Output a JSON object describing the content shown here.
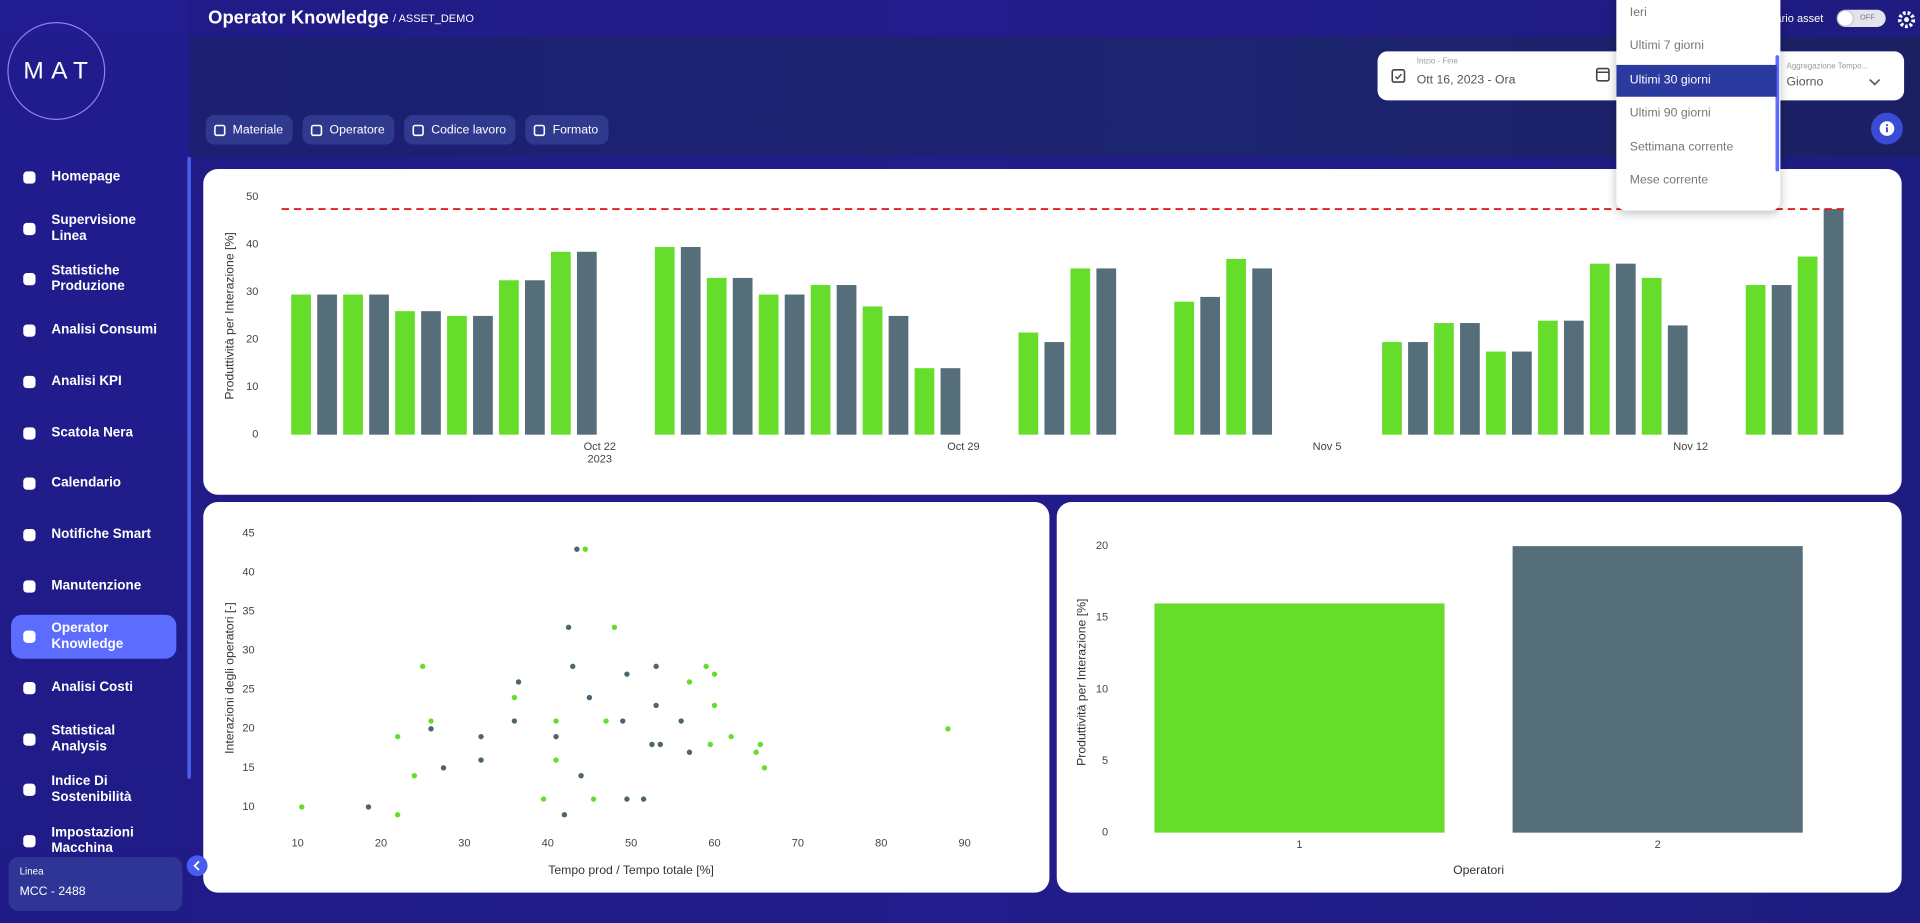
{
  "header": {
    "title": "Operator Knowledge",
    "subtitle": "/ ASSET_DEMO",
    "asset_label": "ario asset",
    "toggle_state": "OFF"
  },
  "sidebar": {
    "logo": "MAT",
    "nav": [
      "Homepage",
      "Supervisione Linea",
      "Statistiche Produzione",
      "Analisi Consumi",
      "Analisi KPI",
      "Scatola Nera",
      "Calendario",
      "Notifiche Smart",
      "Manutenzione",
      "Operator Knowledge",
      "Analisi Costi",
      "Statistical Analysis",
      "Indice Di Sostenibilità",
      "Impostazioni Macchina"
    ],
    "active": 9,
    "line_label": "Linea",
    "line_value": "MCC - 2488"
  },
  "filters": [
    "Materiale",
    "Operatore",
    "Codice lavoro",
    "Formato"
  ],
  "date_range": {
    "label": "Inizio - Fine",
    "value": "Ott 16, 2023 - Ora"
  },
  "aggregation": {
    "label": "Aggregazione Tempo...",
    "value": "Giorno"
  },
  "dropdown": {
    "options": [
      "Ieri",
      "Ultimi 7 giorni",
      "Ultimi 30 giorni",
      "Ultimi 90 giorni",
      "Settimana corrente",
      "Mese corrente"
    ],
    "selected": 2
  },
  "chart_data": [
    {
      "type": "bar",
      "y_label": "Produttività per Interazione [%]",
      "categories": [
        "2023-10-16",
        "2023-10-17",
        "2023-10-18",
        "2023-10-19",
        "2023-10-20",
        "2023-10-21",
        "2023-10-23",
        "2023-10-24",
        "2023-10-25",
        "2023-10-26",
        "2023-10-27",
        "2023-10-28",
        "2023-10-30",
        "2023-10-31",
        "2023-11-02",
        "2023-11-03",
        "2023-11-06",
        "2023-11-07",
        "2023-11-08",
        "2023-11-09",
        "2023-11-10",
        "2023-11-11",
        "2023-11-13",
        "2023-11-14"
      ],
      "series": [
        {
          "color": "#66dd2a",
          "values": [
            29.5,
            29.5,
            26,
            25,
            32.5,
            38.5,
            39.5,
            33,
            29.5,
            31.5,
            27,
            14,
            21.5,
            35,
            28,
            37,
            19.5,
            23.5,
            17.5,
            24,
            36,
            33,
            31.5,
            37.5
          ]
        },
        {
          "color": "#566e7a",
          "values": [
            29.5,
            29.5,
            26,
            25,
            32.5,
            38.5,
            39.5,
            33,
            29.5,
            31.5,
            25,
            14,
            19.5,
            35,
            29,
            35,
            19.5,
            23.5,
            17.5,
            24,
            36,
            23,
            31.5,
            47.5
          ]
        }
      ],
      "xlim": [
        "2023-10-15T21:00",
        "2023-11-15T00:00"
      ],
      "xticks": [
        {
          "value": "2023-10-22",
          "label": "Oct 22\n2023"
        },
        {
          "value": "2023-10-29",
          "label": "Oct 29"
        },
        {
          "value": "2023-11-05",
          "label": "Nov 5"
        },
        {
          "value": "2023-11-12",
          "label": "Nov 12"
        }
      ],
      "ylim": [
        0,
        50
      ],
      "yticks": [
        0,
        10,
        20,
        30,
        40,
        50
      ],
      "reference_line": {
        "value": 47.5,
        "color": "#e02020"
      }
    },
    {
      "type": "scatter",
      "x_label": "Tempo prod / Tempo totale [%]",
      "y_label": "Interazioni degli operatori [-]",
      "series": [
        {
          "color": "#66dd2a",
          "x": [
            10.5,
            22,
            22,
            24,
            25,
            26,
            36,
            39.5,
            41,
            41,
            44.5,
            45.5,
            47,
            48,
            57,
            59,
            60,
            59.5,
            60,
            62,
            65.5,
            65,
            66,
            88
          ],
          "values": [
            10,
            19,
            9,
            14,
            28,
            21,
            24,
            11,
            21,
            16,
            43,
            11,
            21,
            33,
            26,
            28,
            27,
            18,
            23,
            19,
            18,
            17,
            15,
            20
          ]
        },
        {
          "color": "#4d6472",
          "x": [
            18.5,
            26,
            27.5,
            32,
            32,
            36,
            36.5,
            41,
            42,
            42.5,
            43,
            43.5,
            44,
            45,
            49,
            49.5,
            49.5,
            51.5,
            52.5,
            53,
            53,
            53.5,
            56,
            57
          ],
          "values": [
            10,
            20,
            15,
            19,
            16,
            21,
            26,
            19,
            9,
            33,
            28,
            43,
            14,
            24,
            21,
            27,
            11,
            11,
            18,
            28,
            23,
            18,
            21,
            17
          ]
        }
      ],
      "xlim": [
        6,
        94
      ],
      "xticks": [
        10,
        20,
        30,
        40,
        50,
        60,
        70,
        80,
        90
      ],
      "ylim": [
        6,
        47
      ],
      "yticks": [
        10,
        15,
        20,
        25,
        30,
        35,
        40,
        45
      ]
    },
    {
      "type": "bar",
      "x_label": "Operatori",
      "y_label": "Produttività per Interazione [%]",
      "categories": [
        "1",
        "2"
      ],
      "values": [
        16,
        20
      ],
      "colors": [
        "#66dd2a",
        "#566e7a"
      ],
      "ylim": [
        0,
        21
      ],
      "yticks": [
        0,
        5,
        10,
        15,
        20
      ]
    }
  ]
}
